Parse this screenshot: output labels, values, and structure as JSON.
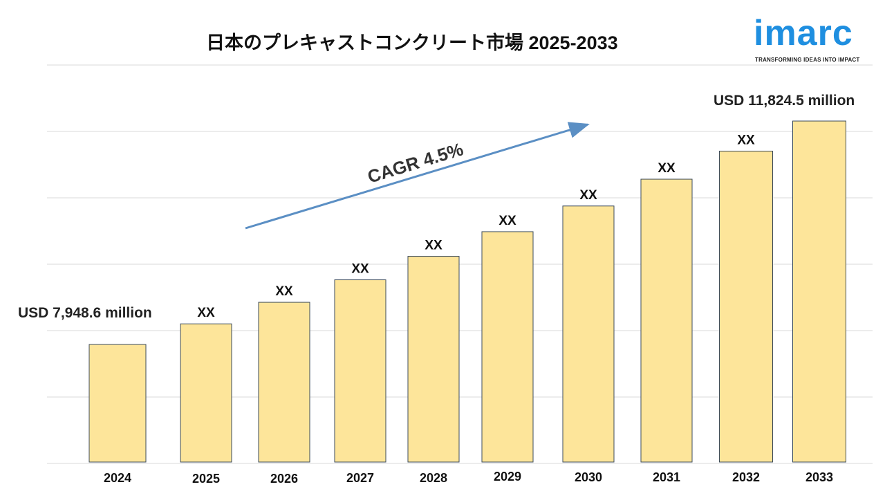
{
  "chart_data": {
    "type": "bar",
    "title": "日本のプレキャストコンクリート市場 2025-2033",
    "categories": [
      "2024",
      "2025",
      "2026",
      "2027",
      "2028",
      "2029",
      "2030",
      "2031",
      "2032",
      "2033"
    ],
    "values": [
      7948.6,
      8306,
      8680,
      9070,
      9478,
      9905,
      10351,
      10816,
      11303,
      11824.5
    ],
    "bar_labels": [
      "",
      "XX",
      "XX",
      "XX",
      "XX",
      "XX",
      "XX",
      "XX",
      "XX",
      ""
    ],
    "unit": "USD million",
    "start_callout": "USD 7,948.6 million",
    "end_callout": "USD 11,824.5 million",
    "cagr_label": "CAGR 4.5%",
    "grid": true,
    "bar_color": "#fde59a",
    "bar_border_color": "#3b4a5a",
    "arrow_color": "#5b8fc4",
    "grid_color": "#d9d9d9"
  },
  "logo": {
    "word": "imarc",
    "tagline": "TRANSFORMING IDEAS INTO IMPACT",
    "color": "#1f8fe0"
  }
}
